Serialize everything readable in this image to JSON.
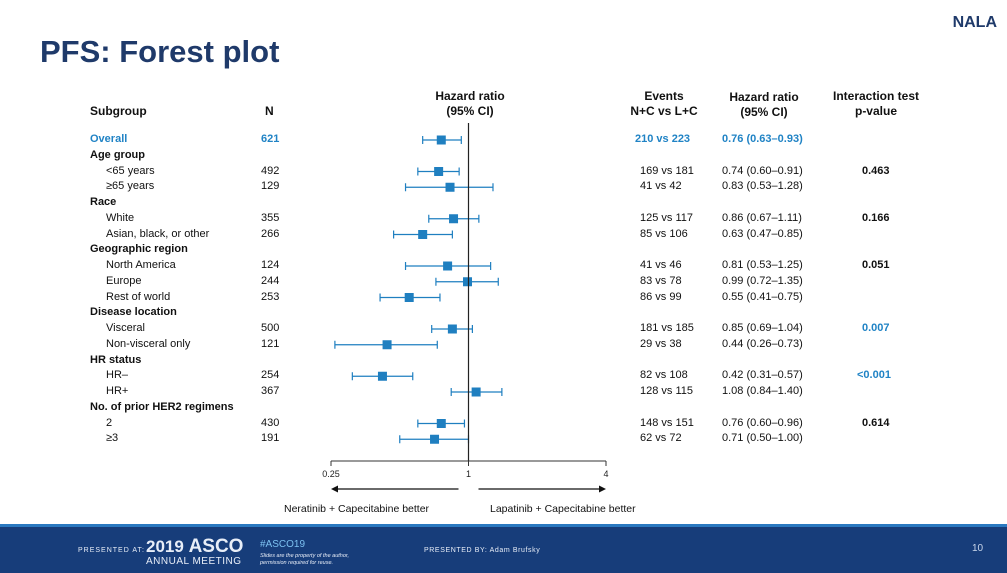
{
  "brand": "NALA",
  "title": "PFS: Forest plot",
  "headers": {
    "subgroup": "Subgroup",
    "n": "N",
    "hr_plot_line1": "Hazard ratio",
    "hr_plot_line2": "(95% CI)",
    "events_line1": "Events",
    "events_line2": "N+C vs L+C",
    "hr_line1": "Hazard ratio",
    "hr_line2": "(95% CI)",
    "pval_line1": "Interaction test",
    "pval_line2": "p-value"
  },
  "rows": [
    {
      "label": "Overall",
      "type": "overall",
      "n": "621",
      "events": "210 vs 223",
      "hr_text": "0.76 (0.63–0.93)",
      "pval": "",
      "hr": 0.76,
      "lo": 0.63,
      "hi": 0.93
    },
    {
      "label": "Age group",
      "type": "group"
    },
    {
      "label": "<65 years",
      "type": "sub",
      "n": "492",
      "events": "169 vs 181",
      "hr_text": "0.74 (0.60–0.91)",
      "pval": "0.463",
      "pcolor": "black",
      "hr": 0.74,
      "lo": 0.6,
      "hi": 0.91
    },
    {
      "label": "≥65 years",
      "type": "sub",
      "n": "129",
      "events": "41 vs 42",
      "hr_text": "0.83 (0.53–1.28)",
      "pval": "",
      "hr": 0.83,
      "lo": 0.53,
      "hi": 1.28
    },
    {
      "label": "Race",
      "type": "group"
    },
    {
      "label": "White",
      "type": "sub",
      "n": "355",
      "events": "125 vs 117",
      "hr_text": "0.86 (0.67–1.11)",
      "pval": "0.166",
      "pcolor": "black",
      "hr": 0.86,
      "lo": 0.67,
      "hi": 1.11
    },
    {
      "label": "Asian, black, or other",
      "type": "sub",
      "n": "266",
      "events": "85 vs 106",
      "hr_text": "0.63 (0.47–0.85)",
      "pval": "",
      "hr": 0.63,
      "lo": 0.47,
      "hi": 0.85
    },
    {
      "label": "Geographic region",
      "type": "group"
    },
    {
      "label": "North America",
      "type": "sub",
      "n": "124",
      "events": "41 vs 46",
      "hr_text": "0.81 (0.53–1.25)",
      "pval": "0.051",
      "pcolor": "black",
      "hr": 0.81,
      "lo": 0.53,
      "hi": 1.25
    },
    {
      "label": "Europe",
      "type": "sub",
      "n": "244",
      "events": "83 vs 78",
      "hr_text": "0.99 (0.72–1.35)",
      "pval": "",
      "hr": 0.99,
      "lo": 0.72,
      "hi": 1.35
    },
    {
      "label": "Rest of world",
      "type": "sub",
      "n": "253",
      "events": "86 vs 99",
      "hr_text": "0.55 (0.41–0.75)",
      "pval": "",
      "hr": 0.55,
      "lo": 0.41,
      "hi": 0.75
    },
    {
      "label": "Disease location",
      "type": "group"
    },
    {
      "label": "Visceral",
      "type": "sub",
      "n": "500",
      "events": "181 vs 185",
      "hr_text": "0.85 (0.69–1.04)",
      "pval": "0.007",
      "pcolor": "blue",
      "hr": 0.85,
      "lo": 0.69,
      "hi": 1.04
    },
    {
      "label": "Non-visceral only",
      "type": "sub",
      "n": "121",
      "events": "29 vs 38",
      "hr_text": "0.44 (0.26–0.73)",
      "pval": "",
      "hr": 0.44,
      "lo": 0.26,
      "hi": 0.73
    },
    {
      "label": "HR status",
      "type": "group"
    },
    {
      "label": "HR–",
      "type": "sub",
      "n": "254",
      "events": "82 vs 108",
      "hr_text": "0.42 (0.31–0.57)",
      "pval": "<0.001",
      "pcolor": "blue",
      "hr": 0.42,
      "lo": 0.31,
      "hi": 0.57
    },
    {
      "label": "HR+",
      "type": "sub",
      "n": "367",
      "events": "128 vs 115",
      "hr_text": "1.08 (0.84–1.40)",
      "pval": "",
      "hr": 1.08,
      "lo": 0.84,
      "hi": 1.4
    },
    {
      "label": "No. of prior HER2 regimens",
      "type": "group"
    },
    {
      "label": "2",
      "type": "sub",
      "n": "430",
      "events": "148 vs 151",
      "hr_text": "0.76 (0.60–0.96)",
      "pval": "0.614",
      "pcolor": "black",
      "hr": 0.76,
      "lo": 0.6,
      "hi": 0.96
    },
    {
      "label": "≥3",
      "type": "sub",
      "n": "191",
      "events": "62 vs 72",
      "hr_text": "0.71 (0.50–1.00)",
      "pval": "",
      "hr": 0.71,
      "lo": 0.5,
      "hi": 1.0
    }
  ],
  "chart_data": {
    "type": "forest",
    "scale": "log",
    "xlim": [
      0.25,
      4
    ],
    "ticks": [
      "0.25",
      "1",
      "4"
    ],
    "tick_values": [
      0.25,
      1,
      4
    ],
    "reference": 1,
    "left_label": "Neratinib + Capecitabine better",
    "right_label": "Lapatinib + Capecitabine better",
    "marker_color": "#1f7fc0"
  },
  "footer": {
    "presented_at": "PRESENTED AT:",
    "asco_year": "2019",
    "asco_name": "ASCO",
    "asco_sub": "ANNUAL MEETING",
    "hashtag": "#ASCO19",
    "disclaimer_line1": "Slides are the property of the author,",
    "disclaimer_line2": "permission required for reuse.",
    "presented_by": "PRESENTED BY: Adam Brufsky",
    "slide_number": "10"
  }
}
